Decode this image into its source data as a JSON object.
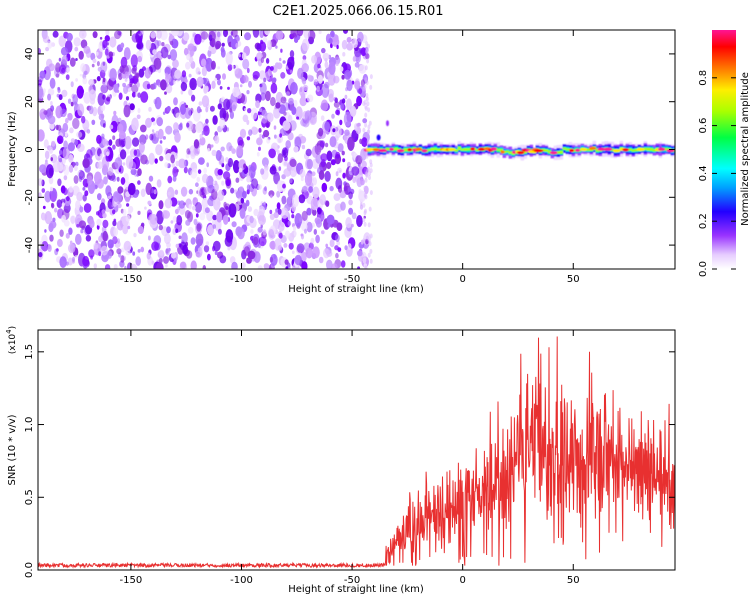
{
  "title": "C2E1.2025.066.06.15.R01",
  "chart_data": [
    {
      "type": "heatmap",
      "xlabel": "Height of straight line (km)",
      "ylabel": "Frequency (Hz)",
      "xlim": [
        -192,
        96
      ],
      "ylim": [
        -50,
        50
      ],
      "x_ticks": [
        -150,
        -100,
        -50,
        0,
        50
      ],
      "y_ticks": [
        -40,
        -20,
        0,
        20,
        40
      ],
      "colorbar": {
        "label": "Normalized spectral amplitude",
        "range": [
          0,
          1
        ],
        "ticks": [
          0.0,
          0.2,
          0.4,
          0.6,
          0.8
        ]
      },
      "noise_region_x": [
        -192,
        -43
      ],
      "signal_region_x": [
        -43,
        96
      ],
      "signal_center_frequency": 0
    },
    {
      "type": "line",
      "xlabel": "Height of straight line (km)",
      "ylabel": "SNR (10 * v/v)",
      "y_multiplier_label": "(x10",
      "y_multiplier_exp": "4",
      "y_multiplier_close": ")",
      "xlim": [
        -192,
        96
      ],
      "ylim": [
        0,
        1.65
      ],
      "x_ticks": [
        -150,
        -100,
        -50,
        0,
        50
      ],
      "y_ticks": [
        0.0,
        0.5,
        1.0,
        1.5
      ],
      "series_color": "#e83030"
    }
  ]
}
